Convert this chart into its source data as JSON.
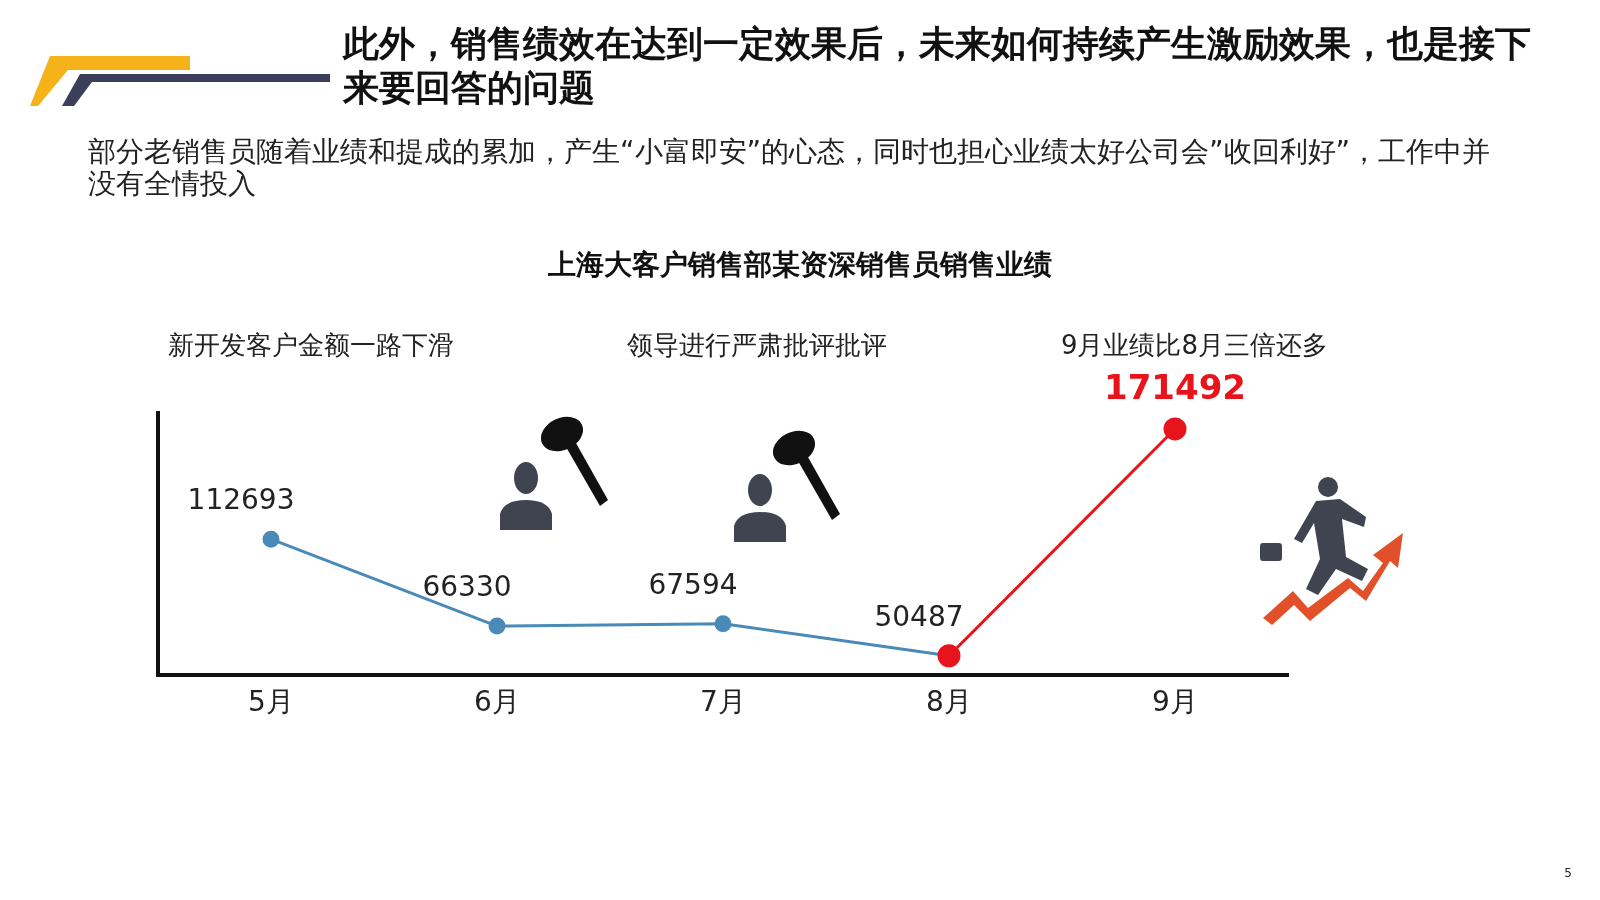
{
  "chart_data": {
    "type": "line",
    "title": "此外，销售绩效在达到一定效果后，未来如何持续产生激励效果，也是接下来要回答的问题",
    "subtitle": "部分老销售员随着业绩和提成的累加，产生“小富即安”的心态，同时也担心业绩太好公司会”收回利好”，工作中并没有全情投入",
    "ylabel": null,
    "annotations": [
      "上海大客户销售部某资深销售员销售业绩",
      "新开发客户金额一路下滑",
      "领导进行严肃批评批评",
      "9月业绩比8月三倍还多",
      "5"
    ],
    "categories": [
      "5月",
      "6月",
      "7月",
      "8月",
      "9月"
    ],
    "series": [
      {
        "color": "#4a8ab8",
        "values": [
          112693,
          66330,
          67594,
          50487,
          null
        ],
        "value_labels": [
          "112693",
          "66330",
          "67594",
          "50487",
          null
        ]
      },
      {
        "color": "#e8141b",
        "values": [
          null,
          null,
          null,
          50487,
          171492
        ],
        "value_labels": [
          null,
          null,
          null,
          null,
          "171492"
        ]
      }
    ],
    "grid": false,
    "legend": false,
    "marker": "circle",
    "line_style": "solid",
    "tick_labels": "x"
  }
}
